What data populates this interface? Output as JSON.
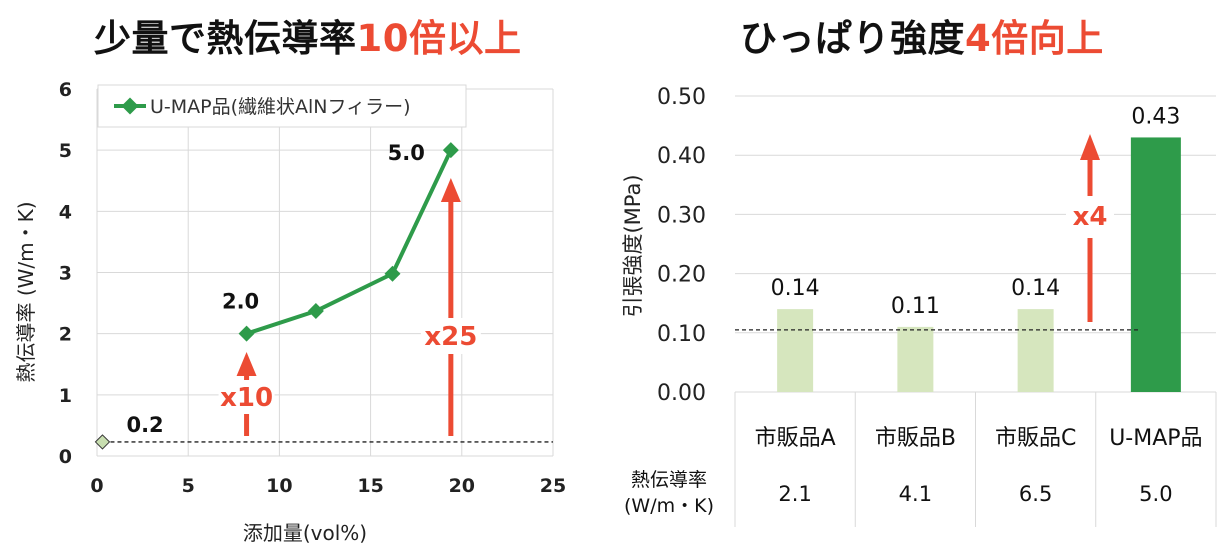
{
  "left_title": {
    "main": "少量で熱伝導率",
    "accent": "10倍以上"
  },
  "right_title": {
    "main": "ひっぱり強度",
    "accent": "4倍向上"
  },
  "chart_data": [
    {
      "type": "line",
      "xlabel": "添加量(vol%)",
      "ylabel": "熱伝導率 (W/m・K)",
      "xlim": [
        0,
        25
      ],
      "ylim": [
        0,
        6
      ],
      "xticks": [
        "0",
        "5",
        "10",
        "15",
        "20",
        "25"
      ],
      "yticks": [
        "0",
        "1",
        "2",
        "3",
        "4",
        "5",
        "6"
      ],
      "grid": true,
      "legend": "top-left",
      "series": [
        {
          "name": "U-MAP品(繊維状AlNフィラー)",
          "x": [
            8.2,
            12.0,
            16.2,
            19.4
          ],
          "y": [
            2.0,
            2.37,
            2.98,
            5.0
          ],
          "color": "#2e9b4a"
        }
      ],
      "baseline_point": {
        "x": 0.3,
        "y": 0.23,
        "color": "#c8deb0"
      },
      "data_labels": [
        {
          "text": "0.2",
          "x": 0.3,
          "y": 0.23
        },
        {
          "text": "2.0",
          "x": 8.2,
          "y": 2.0
        },
        {
          "text": "5.0",
          "x": 19.4,
          "y": 5.0
        }
      ],
      "annotations": [
        {
          "text": "x10",
          "color": "#ec4b33"
        },
        {
          "text": "x25",
          "color": "#ec4b33"
        }
      ]
    },
    {
      "type": "bar",
      "ylabel": "引張強度(MPa)",
      "ylim": [
        0,
        0.5
      ],
      "yticks": [
        "0.00",
        "0.10",
        "0.20",
        "0.30",
        "0.40",
        "0.50"
      ],
      "categories": [
        "市販品A",
        "市販品B",
        "市販品C",
        "U-MAP品"
      ],
      "values": [
        0.14,
        0.11,
        0.14,
        0.43
      ],
      "value_labels": [
        "0.14",
        "0.11",
        "0.14",
        "0.43"
      ],
      "colors": [
        "#d6e6be",
        "#d6e6be",
        "#d6e6be",
        "#2e9b4a"
      ],
      "reference_line": 0.105,
      "annotation": {
        "text": "x4",
        "color": "#ec4b33"
      },
      "table": {
        "row_label": [
          "熱伝導率",
          "(W/m・K)"
        ],
        "values": [
          "2.1",
          "4.1",
          "6.5",
          "5.0"
        ]
      }
    }
  ]
}
